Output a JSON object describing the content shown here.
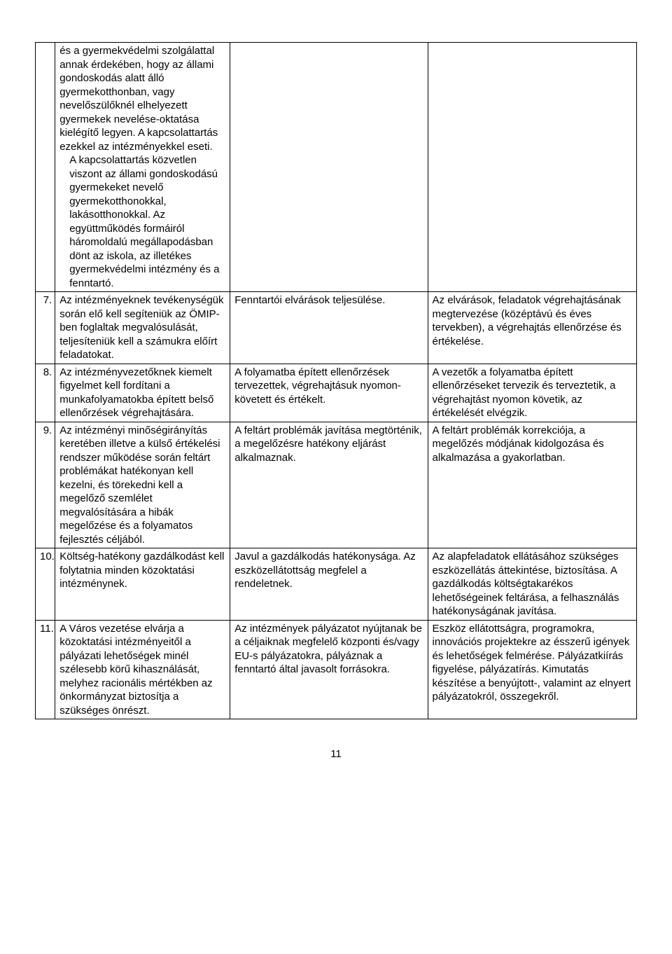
{
  "page_number": "11",
  "rows": [
    {
      "num": "",
      "c1_a": "és a gyermekvédelmi szolgálattal annak érdekében, hogy az állami gondoskodás alatt álló gyermekotthonban, vagy nevelőszülőknél elhelyezett gyermekek nevelése-oktatása kielégítő legyen. A kapcsolattartás ezekkel az intézményekkel eseti.",
      "c1_b": "A kapcsolattartás közvetlen viszont az állami gondoskodású gyermekeket nevelő gyermekotthonokkal, lakásotthonokkal. Az együttműködés formáiról háromoldalú megállapodásban dönt az iskola, az illetékes gyermekvédelmi intézmény és a fenntartó.",
      "c2": "",
      "c3": ""
    },
    {
      "num": "7.",
      "c1": "Az intézményeknek tevékenységük során elő kell segíteniük az ÖMIP-ben foglaltak megvalósulását, teljesíteniük kell a számukra előírt feladatokat.",
      "c2": "Fenntartói elvárások teljesülése.",
      "c3": "Az elvárások, feladatok végrehajtásának megtervezése (középtávú és éves tervekben), a végrehajtás ellenőrzése és értékelése."
    },
    {
      "num": "8.",
      "c1": "Az intézményvezetőknek kiemelt figyelmet kell fordítani a munkafolyamatokba épített belső ellenőrzések végrehajtására.",
      "c2": "A folyamatba épített ellenőrzések tervezettek, végrehajtásuk nyomon-követett és értékelt.",
      "c3": "A vezetők a folyamatba épített ellenőrzéseket tervezik és terveztetik, a végrehajtást nyomon követik, az értékelését elvégzik."
    },
    {
      "num": "9.",
      "c1": "Az intézményi minőségirányítás keretében illetve a külső értékelési rendszer működése során feltárt problémákat hatékonyan kell kezelni, és törekedni kell a megelőző szemlélet megvalósítására a hibák megelőzése és a folyamatos fejlesztés céljából.",
      "c2": "A feltárt problémák javítása megtörténik, a megelőzésre hatékony eljárást alkalmaznak.",
      "c3": "A feltárt problémák korrekciója, a megelőzés módjának kidolgozása és alkalmazása a gyakorlatban."
    },
    {
      "num": "10.",
      "c1": "Költség-hatékony gazdálkodást kell folytatnia minden közoktatási intézménynek.",
      "c2": "Javul a gazdálkodás hatékonysága. Az eszközellátottság megfelel a rendeletnek.",
      "c3": "Az alapfeladatok ellátásához szükséges eszközellátás áttekintése, biztosítása. A  gazdálkodás költségtakarékos lehetőségeinek feltárása, a felhasználás hatékonyságának javítása."
    },
    {
      "num": "11.",
      "c1": "A Város vezetése elvárja a közoktatási intézményeitől a pályázati lehetőségek minél szélesebb körű kihasználását, melyhez racionális mértékben az önkormányzat biztosítja a szükséges önrészt.",
      "c2": "Az intézmények pályázatot nyújtanak be a céljaiknak megfelelő központi és/vagy EU-s pályázatokra, pályáznak a fenntartó által javasolt forrásokra.",
      "c3": "Eszköz ellátottságra, programokra, innovációs projektekre az ésszerű igények és lehetőségek felmérése. Pályázatkiírás figyelése, pályázatírás. Kimutatás készítése a benyújtott-, valamint az elnyert pályázatokról, összegekről."
    }
  ]
}
